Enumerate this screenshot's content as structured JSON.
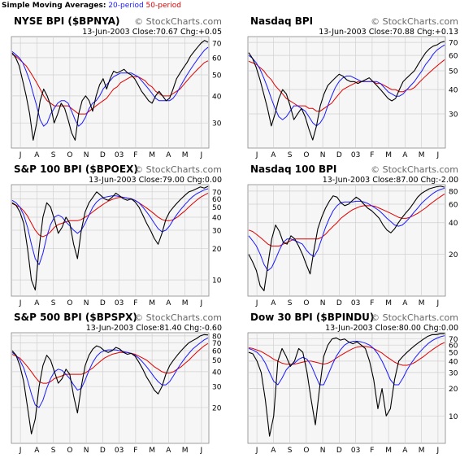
{
  "legend": {
    "label": "Simple Moving Averages:",
    "ma20": "20-period",
    "ma50": "50-period",
    "color20": "#1a1aff",
    "color50": "#e00000"
  },
  "chart_data": [
    {
      "type": "line",
      "title": "NYSE BPI ($BPNYA)",
      "copyright": "© StockCharts.com",
      "info": "13-Jun-2003 Close:70.67 Chg:+0.05",
      "scale": "log",
      "ylim": [
        23,
        75
      ],
      "yticks": [
        30,
        40,
        50,
        60,
        70
      ],
      "xtick_labels": [
        "J",
        "A",
        "S",
        "O",
        "N",
        "D",
        "03",
        "F",
        "M",
        "A",
        "M",
        "J"
      ],
      "series": [
        {
          "role": "price",
          "values": [
            63,
            60,
            55,
            47,
            40,
            33,
            25,
            30,
            38,
            43,
            40,
            36,
            30,
            33,
            37,
            35,
            31,
            27,
            25,
            33,
            38,
            40,
            38,
            34,
            40,
            45,
            48,
            43,
            48,
            52,
            51,
            52,
            53,
            51,
            50,
            48,
            45,
            42,
            40,
            38,
            37,
            40,
            42,
            40,
            38,
            39,
            43,
            48,
            51,
            54,
            57,
            61,
            64,
            67,
            70,
            72,
            70.7
          ]
        },
        {
          "role": "sma20",
          "values": [
            64,
            62,
            60,
            57,
            52,
            47,
            41,
            36,
            31,
            29,
            30,
            33,
            35,
            37,
            38,
            38,
            37,
            34,
            31,
            29,
            30,
            32,
            35,
            37,
            38,
            40,
            43,
            45,
            47,
            49,
            50,
            51,
            51,
            51,
            51,
            50,
            49,
            47,
            45,
            43,
            41,
            39,
            38,
            38,
            38,
            38,
            39,
            41,
            44,
            47,
            50,
            53,
            56,
            59,
            62,
            65,
            67
          ]
        },
        {
          "role": "sma50",
          "values": [
            62,
            61,
            59,
            57,
            55,
            52,
            49,
            46,
            43,
            40,
            38,
            37,
            36,
            36,
            36,
            36,
            36,
            35,
            34,
            33,
            33,
            33,
            34,
            35,
            36,
            37,
            38,
            39,
            41,
            43,
            44,
            46,
            47,
            48,
            49,
            49,
            49,
            48,
            47,
            45,
            44,
            42,
            41,
            40,
            40,
            40,
            41,
            42,
            43,
            45,
            47,
            49,
            51,
            53,
            55,
            57,
            58
          ]
        }
      ]
    },
    {
      "type": "line",
      "title": "Nasdaq BPI",
      "copyright": "© StockCharts.com",
      "info": "13-Jun-2003 Close:70.88 Chg:+0.13",
      "scale": "log",
      "ylim": [
        20,
        75
      ],
      "yticks": [
        30,
        40,
        50,
        60,
        70
      ],
      "xtick_labels": [
        "J",
        "A",
        "S",
        "O",
        "N",
        "D",
        "03",
        "F",
        "M",
        "A",
        "M",
        "J"
      ],
      "series": [
        {
          "role": "price",
          "values": [
            62,
            58,
            52,
            45,
            38,
            32,
            26,
            30,
            36,
            40,
            38,
            33,
            28,
            30,
            32,
            29,
            25,
            22,
            26,
            33,
            38,
            42,
            44,
            46,
            48,
            47,
            45,
            44,
            44,
            43,
            44,
            45,
            46,
            44,
            42,
            40,
            38,
            36,
            35,
            36,
            40,
            44,
            46,
            48,
            50,
            54,
            58,
            62,
            65,
            67,
            68,
            70,
            70.9
          ]
        },
        {
          "role": "sma20",
          "values": [
            60,
            58,
            55,
            51,
            46,
            41,
            36,
            32,
            29,
            28,
            29,
            31,
            33,
            33,
            32,
            31,
            29,
            27,
            26,
            27,
            29,
            33,
            37,
            41,
            44,
            46,
            47,
            47,
            46,
            45,
            44,
            44,
            44,
            44,
            44,
            43,
            41,
            39,
            38,
            37,
            37,
            38,
            40,
            42,
            44,
            47,
            50,
            54,
            57,
            61,
            64,
            66,
            68
          ]
        },
        {
          "role": "sma50",
          "values": [
            56,
            55,
            54,
            52,
            50,
            47,
            45,
            42,
            40,
            38,
            36,
            35,
            34,
            33,
            33,
            33,
            32,
            32,
            31,
            31,
            32,
            33,
            34,
            36,
            38,
            40,
            41,
            42,
            43,
            44,
            44,
            44,
            44,
            44,
            43,
            43,
            42,
            41,
            40,
            40,
            39,
            39,
            40,
            40,
            41,
            43,
            45,
            47,
            49,
            51,
            53,
            55,
            57
          ]
        }
      ]
    },
    {
      "type": "line",
      "title": "S&P 100 BPI ($BPOEX)",
      "copyright": "© StockCharts.com",
      "info": "13-Jun-2003 Close:79.00 Chg:0.00",
      "scale": "log",
      "ylim": [
        7,
        82
      ],
      "yticks": [
        10,
        20,
        30,
        40,
        50,
        60,
        70
      ],
      "xtick_labels": [
        "J",
        "A",
        "S",
        "O",
        "N",
        "D",
        "03",
        "F",
        "M",
        "A",
        "M",
        "J"
      ],
      "series": [
        {
          "role": "price",
          "values": [
            55,
            52,
            45,
            35,
            20,
            10,
            8,
            20,
            40,
            55,
            50,
            38,
            28,
            32,
            40,
            35,
            22,
            16,
            30,
            45,
            55,
            62,
            70,
            65,
            60,
            58,
            62,
            68,
            64,
            60,
            58,
            60,
            56,
            50,
            42,
            35,
            30,
            25,
            22,
            28,
            38,
            45,
            50,
            55,
            60,
            65,
            70,
            72,
            75,
            78,
            76,
            79
          ]
        },
        {
          "role": "sma20",
          "values": [
            58,
            55,
            50,
            42,
            32,
            22,
            16,
            14,
            18,
            26,
            34,
            40,
            42,
            40,
            36,
            33,
            30,
            28,
            30,
            35,
            42,
            50,
            56,
            60,
            62,
            63,
            64,
            64,
            63,
            62,
            61,
            60,
            58,
            55,
            50,
            45,
            40,
            35,
            31,
            29,
            30,
            33,
            38,
            43,
            48,
            53,
            58,
            63,
            67,
            70,
            73,
            75
          ]
        },
        {
          "role": "sma50",
          "values": [
            54,
            52,
            50,
            46,
            41,
            35,
            30,
            27,
            26,
            27,
            29,
            32,
            34,
            35,
            36,
            37,
            37,
            37,
            38,
            40,
            42,
            45,
            48,
            51,
            54,
            57,
            59,
            61,
            62,
            62,
            61,
            60,
            58,
            55,
            52,
            49,
            46,
            43,
            40,
            38,
            37,
            37,
            38,
            40,
            43,
            46,
            50,
            54,
            58,
            62,
            65,
            68
          ]
        }
      ]
    },
    {
      "type": "line",
      "title": "Nasdaq 100 BPI",
      "copyright": "© StockCharts.com",
      "info": "13-Jun-2003 Close:87.00 Chg:-2.00",
      "scale": "log",
      "ylim": [
        8,
        92
      ],
      "yticks": [
        20,
        40,
        60,
        80
      ],
      "xtick_labels": [
        "J",
        "A",
        "S",
        "O",
        "N",
        "D",
        "03",
        "F",
        "M",
        "A",
        "M",
        "J"
      ],
      "series": [
        {
          "role": "price",
          "values": [
            20,
            17,
            14,
            10,
            9,
            16,
            28,
            38,
            33,
            26,
            25,
            30,
            28,
            24,
            20,
            16,
            13,
            22,
            35,
            45,
            55,
            64,
            72,
            70,
            62,
            58,
            60,
            65,
            70,
            66,
            60,
            55,
            52,
            48,
            44,
            38,
            34,
            32,
            35,
            40,
            45,
            50,
            55,
            62,
            70,
            76,
            80,
            84,
            86,
            88,
            89,
            87
          ]
        },
        {
          "role": "sma20",
          "values": [
            30,
            27,
            24,
            20,
            16,
            14,
            15,
            18,
            22,
            26,
            28,
            28,
            27,
            26,
            25,
            22,
            20,
            19,
            22,
            28,
            36,
            44,
            52,
            58,
            62,
            63,
            63,
            63,
            64,
            64,
            63,
            61,
            58,
            55,
            52,
            48,
            44,
            41,
            38,
            37,
            38,
            41,
            45,
            50,
            55,
            61,
            66,
            71,
            76,
            80,
            83,
            85
          ]
        },
        {
          "role": "sma50",
          "values": [
            34,
            33,
            31,
            29,
            27,
            25,
            24,
            24,
            24,
            25,
            26,
            27,
            28,
            28,
            28,
            28,
            28,
            28,
            28,
            29,
            31,
            34,
            37,
            40,
            44,
            47,
            50,
            53,
            55,
            57,
            58,
            58,
            58,
            57,
            55,
            53,
            51,
            49,
            47,
            45,
            44,
            44,
            45,
            47,
            49,
            52,
            55,
            59,
            63,
            67,
            71,
            75
          ]
        }
      ]
    },
    {
      "type": "line",
      "title": "S&P 500 BPI ($BPSPX)",
      "copyright": "© StockCharts.com",
      "info": "13-Jun-2003 Close:81.40 Chg:-0.60",
      "scale": "log",
      "ylim": [
        10,
        85
      ],
      "yticks": [
        20,
        30,
        40,
        50,
        60,
        70,
        80
      ],
      "xtick_labels": [
        "J",
        "A",
        "S",
        "O",
        "N",
        "D",
        "03",
        "F",
        "M",
        "A",
        "M",
        "J"
      ],
      "series": [
        {
          "role": "price",
          "values": [
            60,
            55,
            45,
            33,
            20,
            12,
            16,
            30,
            45,
            55,
            50,
            40,
            32,
            35,
            42,
            38,
            25,
            18,
            30,
            45,
            55,
            62,
            66,
            64,
            60,
            58,
            60,
            64,
            62,
            58,
            56,
            57,
            54,
            48,
            42,
            36,
            32,
            28,
            26,
            30,
            38,
            45,
            50,
            55,
            60,
            65,
            70,
            73,
            76,
            80,
            82,
            81.4
          ]
        },
        {
          "role": "sma20",
          "values": [
            58,
            55,
            50,
            43,
            34,
            26,
            21,
            20,
            23,
            29,
            35,
            40,
            42,
            41,
            38,
            35,
            31,
            28,
            29,
            34,
            41,
            48,
            54,
            58,
            60,
            61,
            61,
            61,
            60,
            59,
            58,
            57,
            55,
            52,
            48,
            44,
            40,
            36,
            33,
            31,
            31,
            33,
            37,
            42,
            47,
            52,
            57,
            62,
            66,
            70,
            74,
            77
          ]
        },
        {
          "role": "sma50",
          "values": [
            56,
            54,
            52,
            48,
            44,
            40,
            36,
            33,
            32,
            32,
            33,
            35,
            36,
            37,
            38,
            38,
            38,
            38,
            38,
            39,
            41,
            43,
            46,
            49,
            52,
            54,
            56,
            57,
            58,
            58,
            58,
            57,
            56,
            54,
            52,
            50,
            47,
            44,
            42,
            40,
            39,
            39,
            40,
            42,
            44,
            47,
            50,
            54,
            58,
            62,
            66,
            69
          ]
        }
      ]
    },
    {
      "type": "line",
      "title": "Dow 30 BPI ($BPINDU)",
      "copyright": "© StockCharts.com",
      "info": "13-Jun-2003 Close:80.00 Chg:0.00",
      "scale": "log",
      "ylim": [
        5,
        82
      ],
      "yticks": [
        10,
        20,
        30,
        40,
        50,
        60,
        70
      ],
      "xtick_labels": [
        "J",
        "A",
        "S",
        "O",
        "N",
        "D",
        "03",
        "F",
        "M",
        "A",
        "M",
        "J"
      ],
      "series": [
        {
          "role": "price",
          "values": [
            50,
            48,
            40,
            30,
            15,
            6,
            10,
            40,
            55,
            45,
            35,
            40,
            55,
            50,
            30,
            15,
            8,
            20,
            45,
            60,
            70,
            72,
            68,
            70,
            65,
            62,
            65,
            60,
            55,
            40,
            25,
            12,
            20,
            10,
            12,
            25,
            40,
            45,
            50,
            55,
            60,
            65,
            70,
            75,
            78,
            78,
            80,
            80
          ]
        },
        {
          "role": "sma20",
          "values": [
            55,
            53,
            50,
            45,
            38,
            30,
            24,
            22,
            26,
            32,
            36,
            38,
            42,
            44,
            42,
            36,
            28,
            22,
            22,
            28,
            36,
            45,
            53,
            60,
            64,
            66,
            66,
            65,
            63,
            60,
            55,
            48,
            40,
            32,
            25,
            22,
            22,
            26,
            32,
            38,
            44,
            50,
            56,
            62,
            67,
            71,
            74,
            76
          ]
        },
        {
          "role": "sma50",
          "values": [
            56,
            55,
            53,
            51,
            48,
            45,
            42,
            40,
            38,
            37,
            37,
            37,
            38,
            39,
            40,
            40,
            39,
            38,
            37,
            38,
            40,
            43,
            46,
            49,
            52,
            55,
            57,
            58,
            58,
            57,
            55,
            52,
            49,
            45,
            42,
            39,
            37,
            36,
            36,
            37,
            39,
            42,
            45,
            49,
            53,
            57,
            61,
            64
          ]
        }
      ]
    }
  ]
}
